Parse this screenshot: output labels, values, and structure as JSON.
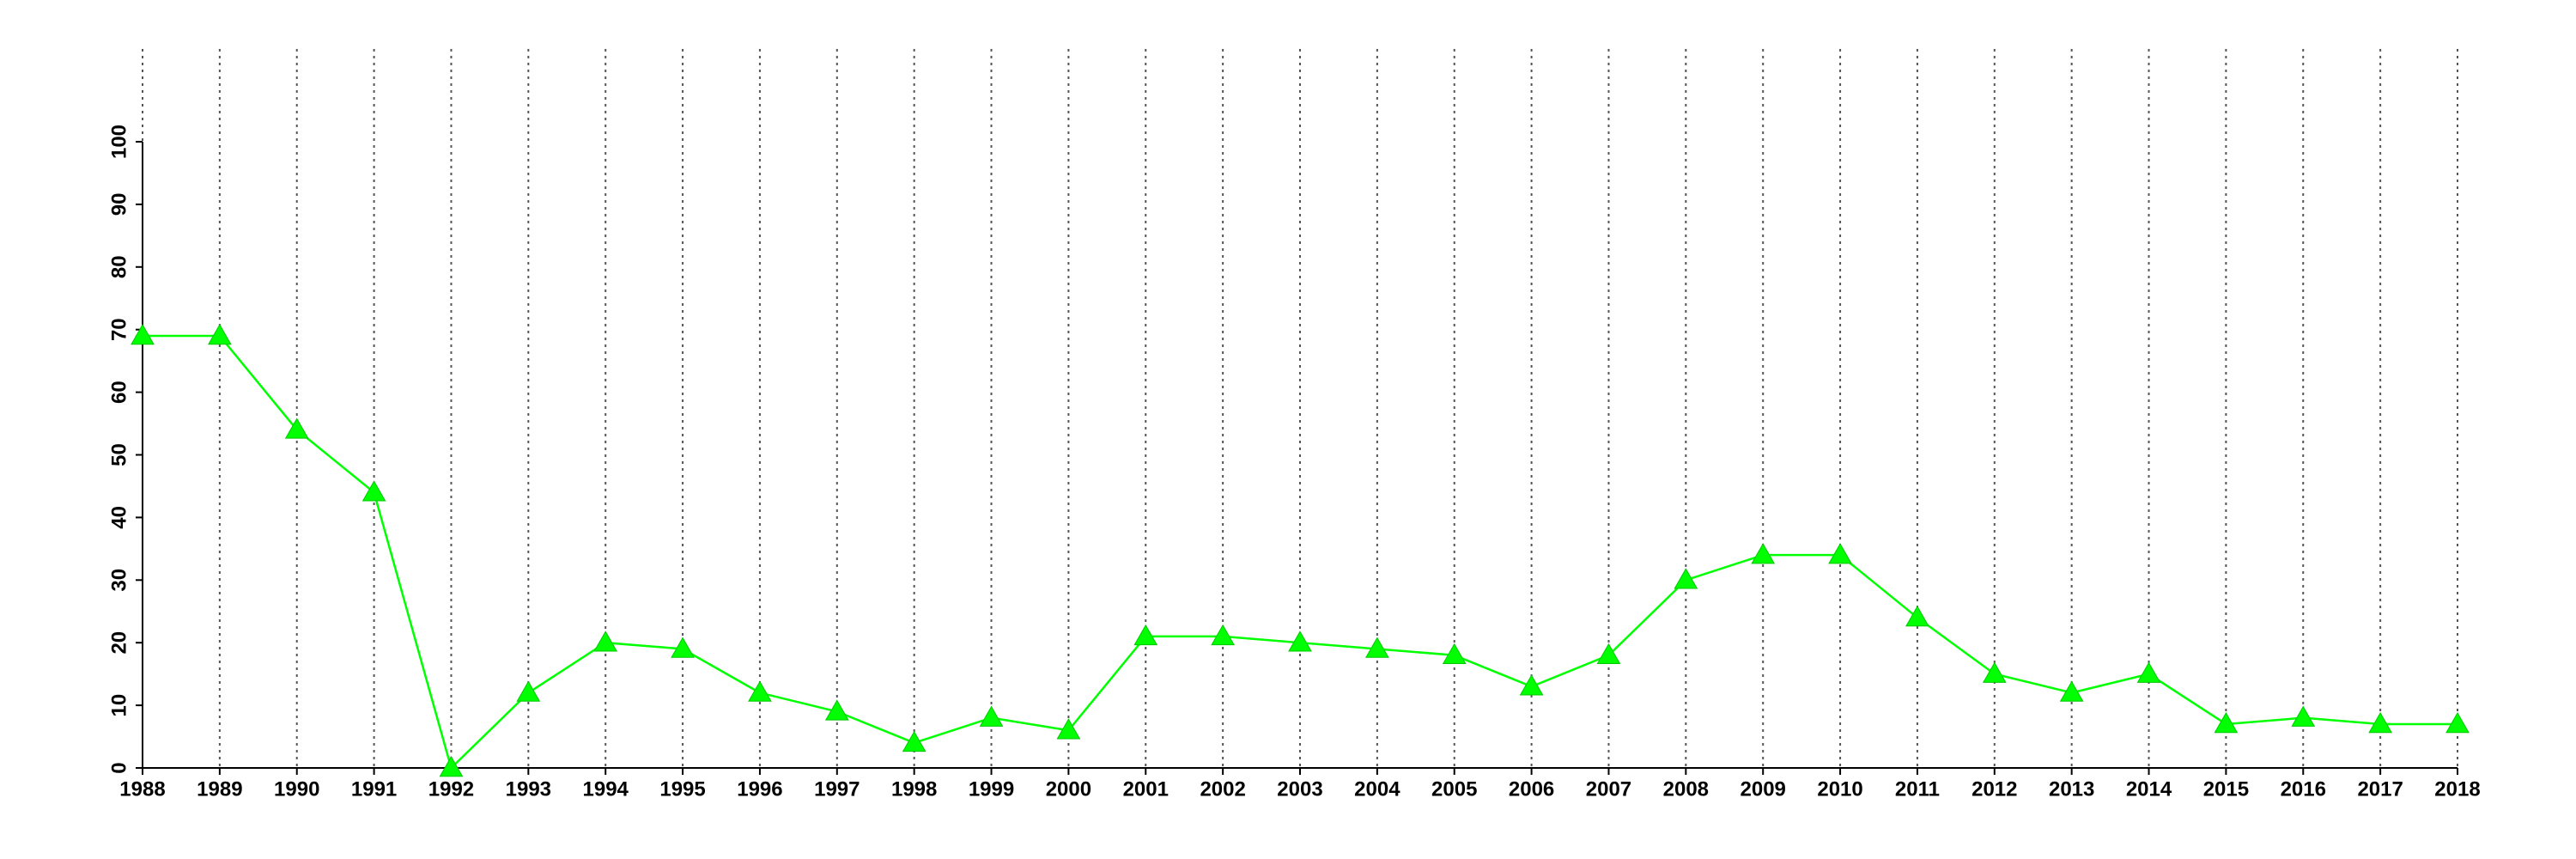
{
  "chart_data": {
    "type": "line",
    "x": [
      1988,
      1989,
      1990,
      1991,
      1992,
      1993,
      1994,
      1995,
      1996,
      1997,
      1998,
      1999,
      2000,
      2001,
      2002,
      2003,
      2004,
      2005,
      2006,
      2007,
      2008,
      2009,
      2010,
      2011,
      2012,
      2013,
      2014,
      2015,
      2016,
      2017,
      2018
    ],
    "values": [
      69,
      69,
      54,
      44,
      0,
      12,
      20,
      19,
      12,
      9,
      4,
      8,
      6,
      21,
      21,
      20,
      19,
      18,
      13,
      18,
      30,
      34,
      34,
      24,
      15,
      12,
      15,
      7,
      8,
      7,
      7
    ],
    "color": "#00ff00",
    "marker": "triangle",
    "xlim": [
      1988,
      2018
    ],
    "xticks": [
      1988,
      1989,
      1990,
      1991,
      1992,
      1993,
      1994,
      1995,
      1996,
      1997,
      1998,
      1999,
      2000,
      2001,
      2002,
      2003,
      2004,
      2005,
      2006,
      2007,
      2008,
      2009,
      2010,
      2011,
      2012,
      2013,
      2014,
      2015,
      2016,
      2017,
      2018
    ],
    "ylim": [
      0,
      100
    ],
    "yticks": [
      0,
      10,
      20,
      30,
      40,
      50,
      60,
      70,
      80,
      90,
      100
    ],
    "grid": "x"
  }
}
